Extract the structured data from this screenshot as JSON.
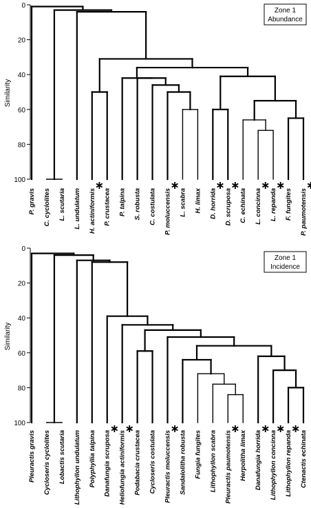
{
  "chart_data": [
    {
      "type": "dendrogram",
      "legend": [
        "Zone 1",
        "Abundance"
      ],
      "ylabel": "Similarity",
      "ylim": [
        0,
        100
      ],
      "yticks": [
        "0",
        "20",
        "40",
        "60",
        "80",
        "100"
      ],
      "leaves": [
        {
          "label": "P. gravis",
          "star": false
        },
        {
          "label": "C. cyclolites",
          "star": false
        },
        {
          "label": "L. scutaria",
          "star": false
        },
        {
          "label": "L. undulatum",
          "star": false
        },
        {
          "label": "H. actiniformis",
          "star": true
        },
        {
          "label": "P. crustacea",
          "star": false
        },
        {
          "label": "P. talpina",
          "star": false
        },
        {
          "label": "S. robusta",
          "star": false
        },
        {
          "label": "C. costulata",
          "star": false
        },
        {
          "label": "P. moluccensis",
          "star": true
        },
        {
          "label": "L. scabra",
          "star": false
        },
        {
          "label": "H. limax",
          "star": false
        },
        {
          "label": "D. horrida",
          "star": true
        },
        {
          "label": "D. scruposa",
          "star": true
        },
        {
          "label": "C. echinata",
          "star": false
        },
        {
          "label": "L. concinna",
          "star": true
        },
        {
          "label": "L. repanda",
          "star": true
        },
        {
          "label": "F. fungites",
          "star": false
        },
        {
          "label": "P. paumotensis",
          "star": true
        }
      ],
      "merges": [
        {
          "a": 1,
          "b": 2,
          "sim": 100
        },
        {
          "a": 10,
          "b": 11,
          "sim": 60
        },
        {
          "a": 15,
          "b": 16,
          "sim": 72
        },
        {
          "a": 14,
          "b": "m3",
          "sim": 66
        },
        {
          "a": 17,
          "b": 18,
          "sim": 65
        },
        {
          "a": "m4",
          "b": "m5",
          "sim": 55
        },
        {
          "a": 12,
          "b": 13,
          "sim": 60
        },
        {
          "a": "m7",
          "b": "m6",
          "sim": 41
        },
        {
          "a": 9,
          "b": "m2",
          "sim": 50
        },
        {
          "a": 8,
          "b": "m9",
          "sim": 46
        },
        {
          "a": 7,
          "b": "m10",
          "sim": 42
        },
        {
          "a": 6,
          "b": "m11",
          "sim": 42
        },
        {
          "a": "m12",
          "b": "m8",
          "sim": 36
        },
        {
          "a": 4,
          "b": 5,
          "sim": 50
        },
        {
          "a": "m14",
          "b": "m13",
          "sim": 31
        },
        {
          "a": 3,
          "b": "m15",
          "sim": 4
        },
        {
          "a": "m1",
          "b": "m16",
          "sim": 3
        },
        {
          "a": 0,
          "b": "m17",
          "sim": 1
        }
      ]
    },
    {
      "type": "dendrogram",
      "legend": [
        "Zone 1",
        "Incidence"
      ],
      "ylabel": "Similarity",
      "ylim": [
        0,
        100
      ],
      "yticks": [
        "0",
        "20",
        "40",
        "60",
        "80",
        "100"
      ],
      "leaves": [
        {
          "label": "Pleuractis gravis",
          "star": false
        },
        {
          "label": "Cycloseris cyclolites",
          "star": false
        },
        {
          "label": "Lobactis scutaria",
          "star": false
        },
        {
          "label": "Lithophyllon undulatum",
          "star": false
        },
        {
          "label": "Polyphyllia talpina",
          "star": false
        },
        {
          "label": "Danafungia scruposa",
          "star": true
        },
        {
          "label": "Heliofungia actiniformis",
          "star": true
        },
        {
          "label": "Podabacia crustacea",
          "star": false
        },
        {
          "label": "Cycloseris costulata",
          "star": false
        },
        {
          "label": "Pleuractis moluccensis",
          "star": true
        },
        {
          "label": "Sandalolitha robusta",
          "star": false
        },
        {
          "label": "Fungia fungites",
          "star": false
        },
        {
          "label": "Lithophyllon scabra",
          "star": false
        },
        {
          "label": "Pleuractis paumotensis",
          "star": true
        },
        {
          "label": "Herpolitha limax",
          "star": false
        },
        {
          "label": "Danafungia horrida",
          "star": true
        },
        {
          "label": "Lithophyllon concinna",
          "star": true
        },
        {
          "label": "Lithophyllon repanda",
          "star": true
        },
        {
          "label": "Ctenactis echinata",
          "star": false
        }
      ],
      "merges": [
        {
          "a": 1,
          "b": 2,
          "sim": 100
        },
        {
          "a": 13,
          "b": 14,
          "sim": 84
        },
        {
          "a": 12,
          "b": "m2",
          "sim": 78
        },
        {
          "a": 11,
          "b": "m3",
          "sim": 72
        },
        {
          "a": 10,
          "b": "m4",
          "sim": 64
        },
        {
          "a": 17,
          "b": 18,
          "sim": 80
        },
        {
          "a": 16,
          "b": "m6",
          "sim": 70
        },
        {
          "a": 15,
          "b": "m7",
          "sim": 62
        },
        {
          "a": "m5",
          "b": "m8",
          "sim": 56
        },
        {
          "a": 9,
          "b": "m9",
          "sim": 51
        },
        {
          "a": 7,
          "b": 8,
          "sim": 59
        },
        {
          "a": "m11",
          "b": "m10",
          "sim": 47
        },
        {
          "a": 6,
          "b": "m12",
          "sim": 44
        },
        {
          "a": 5,
          "b": "m13",
          "sim": 39
        },
        {
          "a": 4,
          "b": "m14",
          "sim": 8
        },
        {
          "a": 3,
          "b": "m15",
          "sim": 7
        },
        {
          "a": "m1",
          "b": "m16",
          "sim": 4
        },
        {
          "a": 0,
          "b": "m17",
          "sim": 3
        }
      ]
    }
  ]
}
